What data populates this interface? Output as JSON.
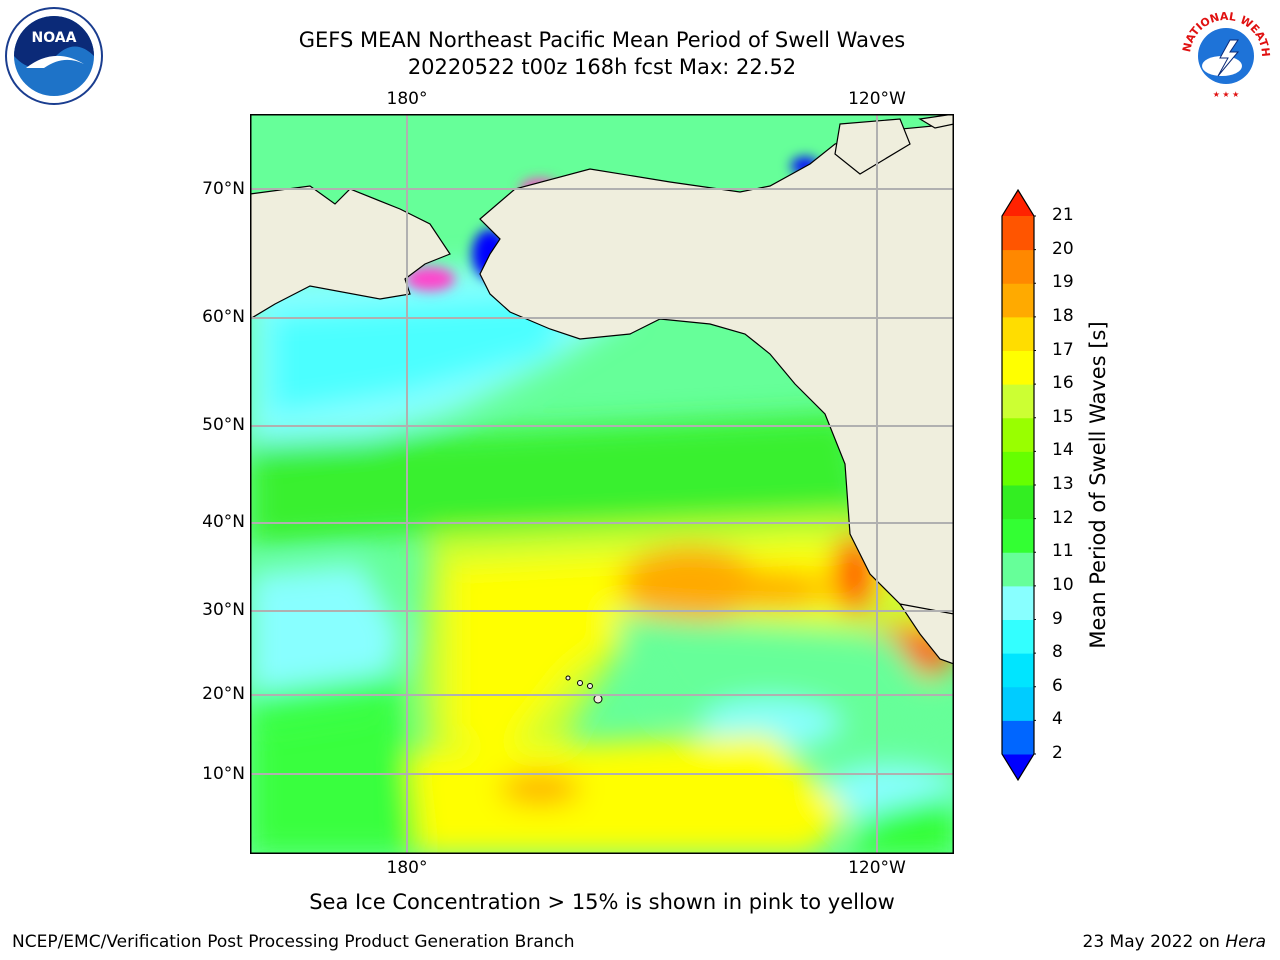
{
  "title": {
    "line1": "GEFS MEAN Northeast Pacific Mean Period of Swell Waves",
    "line2": "20220522 t00z 168h fcst   Max: 22.52"
  },
  "map": {
    "lon_labels_top": [
      "180°",
      "120°W"
    ],
    "lon_labels_bottom": [
      "180°",
      "120°W"
    ],
    "lat_labels": [
      "70°N",
      "60°N",
      "50°N",
      "40°N",
      "30°N",
      "20°N",
      "10°N"
    ],
    "colors": {
      "land": "#efeedd",
      "coast": "#000000",
      "grid": "#b0b0b0",
      "sea_ice": "#ff44cc"
    }
  },
  "colorbar": {
    "title": "Mean Period of Swell Waves [s]",
    "ticks": [
      "2",
      "4",
      "6",
      "8",
      "9",
      "10",
      "11",
      "12",
      "13",
      "14",
      "15",
      "16",
      "17",
      "18",
      "19",
      "20",
      "21"
    ],
    "colors": [
      "#0000ff",
      "#0066ff",
      "#00ccff",
      "#00e5ff",
      "#33ffff",
      "#88ffff",
      "#66ff99",
      "#33ff33",
      "#33ee22",
      "#66ff00",
      "#99ff00",
      "#ccff33",
      "#ffff00",
      "#ffdd00",
      "#ffaa00",
      "#ff8800",
      "#ff5500",
      "#ff2200"
    ]
  },
  "caption": "Sea Ice Concentration > 15% is shown in pink to yellow",
  "footer": {
    "left": "NCEP/EMC/Verification Post Processing Product Generation Branch",
    "right_prefix": "23 May 2022 on ",
    "right_host": "Hera"
  },
  "logos": {
    "noaa_text": "NOAA",
    "nws_text": "NATIONAL WEATHER SERVICE"
  }
}
